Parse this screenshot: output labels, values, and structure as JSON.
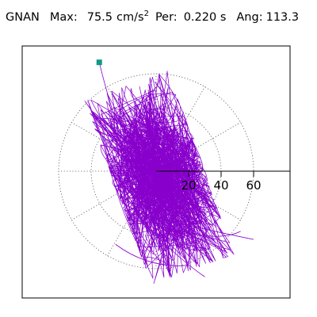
{
  "header": {
    "station": "GNAN",
    "max_label": "Max:",
    "max_value": "75.5",
    "max_unit": "cm/s",
    "max_unit_exp": "2",
    "per_label": "Per:",
    "per_value": "0.220 s",
    "ang_label": "Ang:",
    "ang_value": "113.3"
  },
  "chart_data": {
    "type": "line",
    "subtype": "polar particle-motion trace (acceleration orbit)",
    "axis_unit": "cm/s^2",
    "radial_ticks": [
      20,
      40,
      60
    ],
    "radial_tick_labels": [
      "20",
      "40",
      "60"
    ],
    "rings": [
      20,
      40,
      60
    ],
    "spokes_deg": [
      0,
      30,
      60,
      90,
      120,
      150,
      180,
      210,
      240,
      270,
      300,
      330
    ],
    "axis_extent": 80,
    "grid": "dotted",
    "max_marker": {
      "x": -35,
      "y": 67,
      "color": "#119988"
    },
    "trace_color": "#8800cc",
    "trace_spread": {
      "ex": 17,
      "ey": 29,
      "rotation_deg": 20,
      "max_ex": 27,
      "max_ey": 60
    },
    "trace_segments": 900,
    "trace_outliers": [
      [
        [
          -35,
          67
        ],
        [
          -24,
          22
        ],
        [
          -12,
          2
        ]
      ],
      [
        [
          -20,
          30
        ],
        [
          -8,
          5
        ],
        [
          0,
          -10
        ]
      ],
      [
        [
          5,
          -30
        ],
        [
          40,
          -38
        ],
        [
          60,
          -42
        ]
      ],
      [
        [
          10,
          -35
        ],
        [
          38,
          -44
        ],
        [
          52,
          -37
        ]
      ],
      [
        [
          -10,
          -30
        ],
        [
          15,
          -55
        ],
        [
          30,
          -65
        ]
      ],
      [
        [
          -25,
          -45
        ],
        [
          -5,
          -60
        ],
        [
          20,
          -58
        ]
      ]
    ]
  }
}
